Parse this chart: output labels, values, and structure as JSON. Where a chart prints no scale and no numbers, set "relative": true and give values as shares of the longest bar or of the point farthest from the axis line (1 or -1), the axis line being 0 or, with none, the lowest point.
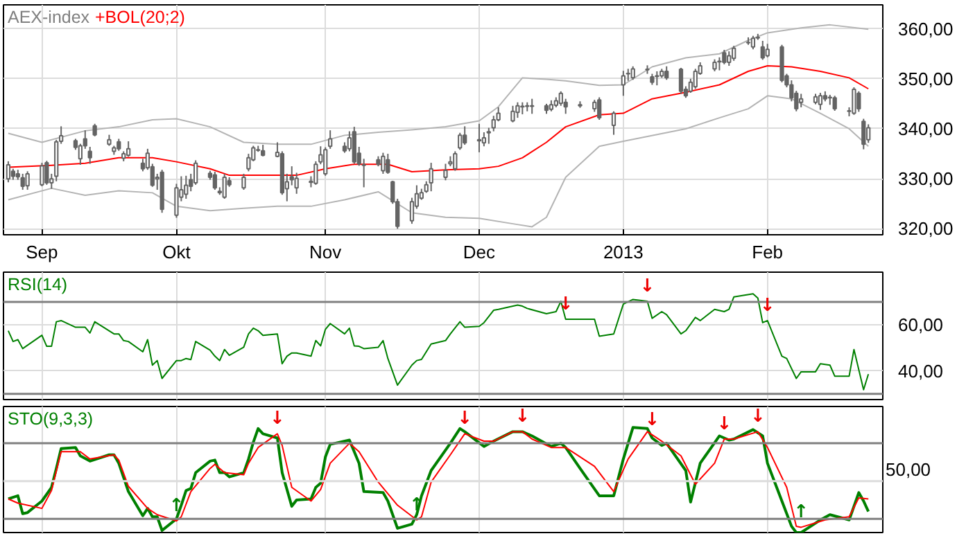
{
  "chart_data": [
    {
      "type": "candlestick",
      "title": "AEX-index",
      "grid": true,
      "xlim": [
        "2012-08-26",
        "2013-02-25"
      ],
      "xticks": [
        {
          "value": "2012-09-03",
          "label": "Sep"
        },
        {
          "value": "2012-10-01",
          "label": "Okt"
        },
        {
          "value": "2012-11-01",
          "label": "Nov"
        },
        {
          "value": "2012-12-03",
          "label": "Dec"
        },
        {
          "value": "2013-01-02",
          "label": "2013"
        },
        {
          "value": "2013-02-01",
          "label": "Feb"
        }
      ],
      "ylim": [
        318.8,
        364.8
      ],
      "yticks": [
        {
          "value": 320,
          "label": "320,00"
        },
        {
          "value": 330,
          "label": "330,00"
        },
        {
          "value": 340,
          "label": "340,00"
        },
        {
          "value": 350,
          "label": "350,00"
        },
        {
          "value": 360,
          "label": "360,00"
        }
      ],
      "x": [
        "2012-08-27",
        "2012-08-28",
        "2012-08-29",
        "2012-08-30",
        "2012-08-31",
        "2012-09-03",
        "2012-09-04",
        "2012-09-05",
        "2012-09-06",
        "2012-09-07",
        "2012-09-10",
        "2012-09-11",
        "2012-09-12",
        "2012-09-13",
        "2012-09-14",
        "2012-09-17",
        "2012-09-18",
        "2012-09-19",
        "2012-09-20",
        "2012-09-21",
        "2012-09-24",
        "2012-09-25",
        "2012-09-26",
        "2012-09-27",
        "2012-09-28",
        "2012-10-01",
        "2012-10-02",
        "2012-10-03",
        "2012-10-04",
        "2012-10-05",
        "2012-10-08",
        "2012-10-09",
        "2012-10-10",
        "2012-10-11",
        "2012-10-12",
        "2012-10-15",
        "2012-10-16",
        "2012-10-17",
        "2012-10-18",
        "2012-10-19",
        "2012-10-22",
        "2012-10-23",
        "2012-10-24",
        "2012-10-25",
        "2012-10-26",
        "2012-10-29",
        "2012-10-30",
        "2012-10-31",
        "2012-11-01",
        "2012-11-02",
        "2012-11-05",
        "2012-11-06",
        "2012-11-07",
        "2012-11-08",
        "2012-11-09",
        "2012-11-12",
        "2012-11-13",
        "2012-11-14",
        "2012-11-15",
        "2012-11-16",
        "2012-11-19",
        "2012-11-20",
        "2012-11-21",
        "2012-11-22",
        "2012-11-23",
        "2012-11-26",
        "2012-11-27",
        "2012-11-28",
        "2012-11-29",
        "2012-11-30",
        "2012-12-03",
        "2012-12-04",
        "2012-12-05",
        "2012-12-06",
        "2012-12-07",
        "2012-12-10",
        "2012-12-11",
        "2012-12-12",
        "2012-12-13",
        "2012-12-14",
        "2012-12-17",
        "2012-12-18",
        "2012-12-19",
        "2012-12-20",
        "2012-12-21",
        "2012-12-24",
        "2012-12-27",
        "2012-12-28",
        "2012-12-31",
        "2013-01-02",
        "2013-01-03",
        "2013-01-04",
        "2013-01-07",
        "2013-01-08",
        "2013-01-09",
        "2013-01-10",
        "2013-01-11",
        "2013-01-14",
        "2013-01-15",
        "2013-01-16",
        "2013-01-17",
        "2013-01-18",
        "2013-01-21",
        "2013-01-22",
        "2013-01-23",
        "2013-01-24",
        "2013-01-25",
        "2013-01-28",
        "2013-01-29",
        "2013-01-30",
        "2013-01-31",
        "2013-02-01",
        "2013-02-04",
        "2013-02-05",
        "2013-02-06",
        "2013-02-07",
        "2013-02-08",
        "2013-02-11",
        "2013-02-12",
        "2013-02-13",
        "2013-02-14",
        "2013-02-15",
        "2013-02-18",
        "2013-02-19",
        "2013-02-20",
        "2013-02-21",
        "2013-02-22"
      ],
      "ohlc": [
        [
          330.0,
          333.5,
          329.3,
          332.8
        ],
        [
          331.5,
          332,
          329.8,
          330.5
        ],
        [
          331,
          331.8,
          329.8,
          330.4
        ],
        [
          330.2,
          331,
          327.8,
          328.5
        ],
        [
          328.6,
          331.5,
          327.8,
          331.0
        ],
        [
          328.8,
          333.2,
          328.5,
          332.6
        ],
        [
          333.2,
          333.6,
          328.8,
          329.2
        ],
        [
          329.2,
          331,
          328,
          330
        ],
        [
          330.5,
          337.8,
          329.5,
          337.4
        ],
        [
          337.5,
          340.5,
          337,
          338.6
        ],
        [
          337.6,
          338,
          335.8,
          336.3
        ],
        [
          334,
          337,
          332.8,
          336.6
        ],
        [
          338,
          339.7,
          336,
          336.6
        ],
        [
          335.5,
          336.4,
          333,
          334.2
        ],
        [
          340.6,
          341,
          338.5,
          338.8
        ],
        [
          336.9,
          338.8,
          336.6,
          337.8
        ],
        [
          335.5,
          336.6,
          334.8,
          336.2
        ],
        [
          337.4,
          338,
          335.6,
          336
        ],
        [
          334.1,
          335.5,
          333.5,
          335
        ],
        [
          334.7,
          337.5,
          334.4,
          336
        ],
        [
          333.1,
          334,
          331.5,
          332
        ],
        [
          332.2,
          336,
          331.8,
          335.1
        ],
        [
          332.4,
          333,
          328.4,
          328.7
        ],
        [
          330,
          331,
          327.8,
          330.3
        ],
        [
          331.3,
          331.8,
          323.2,
          323.9
        ],
        [
          322.7,
          329,
          322.2,
          328.2
        ],
        [
          326.3,
          330.5,
          325.5,
          327.8
        ],
        [
          326.9,
          330.6,
          326,
          328.7
        ],
        [
          329.8,
          331,
          327.5,
          328.5
        ],
        [
          329.2,
          333.7,
          328.8,
          333.1
        ],
        [
          331.1,
          331.6,
          329.8,
          330.3
        ],
        [
          330.8,
          331.4,
          327.8,
          328.2
        ],
        [
          327.2,
          328.3,
          326.8,
          327.5
        ],
        [
          326.3,
          331,
          326,
          330.3
        ],
        [
          329.6,
          330.3,
          328.4,
          328.8
        ],
        [
          328.2,
          331,
          327.8,
          330.3
        ],
        [
          332,
          335,
          331.5,
          334.2
        ],
        [
          333.8,
          336.6,
          333.5,
          336.2
        ],
        [
          335.7,
          336.6,
          335.4,
          335.8
        ],
        [
          335.6,
          336.8,
          334.5,
          334.7
        ],
        [
          334.5,
          337.3,
          334.3,
          335.3
        ],
        [
          335,
          335.5,
          326.8,
          327.2
        ],
        [
          328,
          331,
          325.5,
          329.4
        ],
        [
          330.4,
          332.5,
          328.7,
          329.8
        ],
        [
          328.2,
          331.2,
          327,
          330.1
        ],
        [
          329.3,
          330.5,
          328.3,
          329.5
        ],
        [
          329.1,
          333.5,
          328.8,
          332.9
        ],
        [
          333.4,
          336.5,
          332.9,
          334.8
        ],
        [
          331,
          336.3,
          330.6,
          335.8
        ],
        [
          336.5,
          339.7,
          336,
          338
        ],
        [
          336.5,
          337.3,
          335.2,
          335.6
        ],
        [
          336,
          339.5,
          335.5,
          338.2
        ],
        [
          339.4,
          340.4,
          333,
          333.4
        ],
        [
          335.1,
          336.4,
          332.6,
          333
        ],
        [
          332.8,
          334,
          328.3,
          332.7
        ],
        [
          333.8,
          334.5,
          332.5,
          332.9
        ],
        [
          331.6,
          335.2,
          331,
          334.5
        ],
        [
          333.8,
          335,
          331,
          331.3
        ],
        [
          329.4,
          329.6,
          325,
          325.4
        ],
        [
          325.4,
          326,
          320,
          320.5
        ],
        [
          321.6,
          326.2,
          321,
          325.4
        ],
        [
          324.5,
          328.7,
          324,
          327
        ],
        [
          326.1,
          328,
          325.8,
          327.2
        ],
        [
          327.5,
          329.5,
          327.2,
          328.8
        ],
        [
          329.2,
          333.2,
          327.5,
          332
        ],
        [
          330.3,
          333,
          329.7,
          331.7
        ],
        [
          333,
          334.5,
          332.5,
          333.4
        ],
        [
          332,
          335.5,
          331.6,
          335
        ],
        [
          336.2,
          339.2,
          335.8,
          338.7
        ],
        [
          338.7,
          340.5,
          336.8,
          337.2
        ],
        [
          337.8,
          341,
          335.3,
          337.6
        ],
        [
          337.2,
          339.3,
          336.5,
          338.2
        ],
        [
          339.2,
          340.2,
          337,
          339.4
        ],
        [
          340.2,
          342.6,
          339.5,
          341.8
        ],
        [
          341.8,
          344.3,
          341.5,
          343.1
        ],
        [
          341.6,
          344.6,
          341.3,
          343.5
        ],
        [
          343.3,
          345.3,
          342.2,
          344.6
        ],
        [
          344.4,
          345.3,
          342.9,
          344.5
        ],
        [
          344.6,
          345.3,
          343.5,
          344.5
        ],
        [
          344.5,
          346,
          343,
          344.6
        ],
        [
          344.6,
          345,
          343,
          343.7
        ],
        [
          343.9,
          345.7,
          343.5,
          344.8
        ],
        [
          344.7,
          346.3,
          344.3,
          345.6
        ],
        [
          345.1,
          347.5,
          344.6,
          347.1
        ],
        [
          345.3,
          346,
          343,
          344.4
        ],
        [
          344.6,
          345.5,
          344.2,
          344.8
        ],
        [
          344,
          345.8,
          343.4,
          345.3
        ],
        [
          345.8,
          346.3,
          341.8,
          342.2
        ],
        [
          340.7,
          343.5,
          338.8,
          343.1
        ],
        [
          348.8,
          351.6,
          346.6,
          350.6
        ],
        [
          351,
          352,
          349.6,
          351.1
        ],
        [
          350.2,
          352.5,
          349.8,
          352
        ],
        [
          351.9,
          352.7,
          351,
          351.8
        ],
        [
          350.4,
          351,
          348.8,
          349.3
        ],
        [
          350.5,
          351.5,
          348.7,
          350.6
        ],
        [
          350.6,
          352,
          350.2,
          351.5
        ],
        [
          351.5,
          352.5,
          349.8,
          350.2
        ],
        [
          351.9,
          352.2,
          347,
          347.5
        ],
        [
          347.9,
          348.5,
          346.2,
          346.6
        ],
        [
          347.5,
          350,
          347.2,
          349.3
        ],
        [
          348.4,
          352,
          348,
          351.5
        ],
        [
          351.1,
          353.3,
          350.8,
          352.6
        ],
        [
          352,
          353.9,
          351.5,
          353.3
        ],
        [
          353.4,
          354.3,
          351.7,
          353.5
        ],
        [
          355.2,
          355.8,
          352.9,
          353.3
        ],
        [
          353.3,
          355.5,
          352.6,
          354.6
        ],
        [
          354.1,
          356.6,
          353.6,
          356.1
        ],
        [
          357.2,
          358.3,
          356.8,
          357.3
        ],
        [
          356.4,
          358.6,
          355.9,
          358.1
        ],
        [
          358.2,
          359,
          357.8,
          358.3
        ],
        [
          356.4,
          357.6,
          353.8,
          354.2
        ],
        [
          354.6,
          357,
          354.3,
          355.9
        ],
        [
          356.4,
          356.8,
          349.3,
          349.7
        ],
        [
          350.6,
          351,
          348.3,
          348.8
        ],
        [
          348.8,
          349.7,
          345.5,
          346.2
        ],
        [
          347.1,
          347.6,
          343.5,
          344
        ],
        [
          345.3,
          347,
          344.3,
          346
        ],
        [
          345.3,
          347,
          344.9,
          346.4
        ],
        [
          344.9,
          347.2,
          343.8,
          346.6
        ],
        [
          346.6,
          347.5,
          345.5,
          346
        ],
        [
          346.3,
          346.8,
          344.8,
          346.2
        ],
        [
          346.2,
          346.6,
          343.6,
          344
        ],
        [
          343.6,
          344.3,
          342.5,
          343.5
        ],
        [
          343.1,
          348.3,
          342.8,
          347.9
        ],
        [
          347.1,
          347.5,
          343.4,
          344
        ],
        [
          341.5,
          342,
          335.9,
          336.9
        ],
        [
          337.8,
          340.9,
          337.2,
          340.2
        ]
      ],
      "series": [
        {
          "type": "line",
          "color": "#b4b4b4",
          "x": [
            "2012-08-27",
            "2012-09-03",
            "2012-09-12",
            "2012-09-19",
            "2012-09-26",
            "2012-10-01",
            "2012-10-08",
            "2012-10-15",
            "2012-10-22",
            "2012-10-29",
            "2012-11-05",
            "2012-11-12",
            "2012-11-19",
            "2012-11-26",
            "2012-12-03",
            "2012-12-07",
            "2012-12-12",
            "2012-12-17",
            "2012-12-21",
            "2012-12-28",
            "2013-01-02",
            "2013-01-08",
            "2013-01-15",
            "2013-01-22",
            "2013-01-28",
            "2013-02-01",
            "2013-02-08",
            "2013-02-14",
            "2013-02-22"
          ],
          "values": [
            339.1,
            337.3,
            339.6,
            340.4,
            341.8,
            342,
            340.4,
            337.3,
            336.9,
            336.9,
            338.7,
            339.3,
            339.8,
            340.4,
            341.6,
            344.4,
            350.2,
            349.9,
            349.6,
            348.7,
            348.8,
            352.4,
            354.2,
            355,
            357.7,
            359.2,
            360.2,
            360.8,
            359.9
          ]
        },
        {
          "type": "line",
          "name": "+BOL(20;2)",
          "color": "#ff0000",
          "x": [
            "2012-08-27",
            "2012-09-05",
            "2012-09-12",
            "2012-09-19",
            "2012-09-26",
            "2012-10-01",
            "2012-10-08",
            "2012-10-12",
            "2012-10-19",
            "2012-10-26",
            "2012-11-01",
            "2012-11-07",
            "2012-11-14",
            "2012-11-19",
            "2012-11-26",
            "2012-12-03",
            "2012-12-07",
            "2012-12-12",
            "2012-12-17",
            "2012-12-21",
            "2012-12-28",
            "2013-01-02",
            "2013-01-08",
            "2013-01-15",
            "2013-01-22",
            "2013-01-28",
            "2013-02-01",
            "2013-02-06",
            "2013-02-12",
            "2013-02-18",
            "2013-02-22"
          ],
          "values": [
            332.3,
            332.7,
            333.1,
            334.2,
            334.2,
            333.4,
            332,
            330.7,
            330.7,
            330.7,
            332,
            332.9,
            332.9,
            331.4,
            331.8,
            332,
            332.5,
            334.2,
            337.3,
            340.4,
            342.8,
            343.1,
            346,
            347.3,
            348.8,
            351.5,
            352.6,
            352.4,
            351.5,
            350.2,
            348
          ]
        },
        {
          "type": "line",
          "color": "#b4b4b4",
          "x": [
            "2012-08-27",
            "2012-09-05",
            "2012-09-12",
            "2012-09-19",
            "2012-09-26",
            "2012-10-01",
            "2012-10-08",
            "2012-10-15",
            "2012-10-22",
            "2012-10-29",
            "2012-11-05",
            "2012-11-12",
            "2012-11-19",
            "2012-11-26",
            "2012-12-03",
            "2012-12-10",
            "2012-12-14",
            "2012-12-17",
            "2012-12-21",
            "2012-12-28",
            "2013-01-02",
            "2013-01-15",
            "2013-01-22",
            "2013-01-28",
            "2013-02-01",
            "2013-02-06",
            "2013-02-12",
            "2013-02-18",
            "2013-02-22"
          ],
          "values": [
            325.8,
            328.1,
            326.7,
            327.6,
            327.2,
            324.5,
            323.6,
            324.1,
            324.5,
            324.5,
            325.8,
            327.4,
            323.2,
            322.3,
            322.1,
            321,
            320.4,
            322.3,
            330.3,
            336.5,
            337.5,
            340,
            342.2,
            344,
            346.6,
            346,
            343.1,
            340,
            336.5
          ]
        }
      ]
    },
    {
      "type": "line",
      "title": "RSI(14)",
      "grid": true,
      "tick_labels": "y",
      "xlim": [
        "2012-08-26",
        "2013-02-25"
      ],
      "xticks": [
        {
          "value": "2012-09-03",
          "label": null
        },
        {
          "value": "2012-10-01",
          "label": null
        },
        {
          "value": "2012-11-01",
          "label": null
        },
        {
          "value": "2012-12-03",
          "label": null
        },
        {
          "value": "2013-01-02",
          "label": null
        },
        {
          "value": "2013-02-01",
          "label": null
        }
      ],
      "ylim": [
        27.5,
        83
      ],
      "yticks": [
        {
          "value": 40,
          "label": "40,00"
        },
        {
          "value": 60,
          "label": "60,00"
        }
      ],
      "ref_lines": [
        {
          "axis": "y",
          "value": 30,
          "color": "#808080"
        },
        {
          "axis": "y",
          "value": 70,
          "color": "#808080"
        }
      ],
      "annotations": [
        {
          "text": "↓",
          "x": "2012-12-21",
          "y": 62.5
        },
        {
          "text": "↓",
          "x": "2013-01-07",
          "y": 70.3
        },
        {
          "text": "↓",
          "x": "2013-02-01",
          "y": 61.9
        }
      ],
      "series": [
        {
          "color": "#008000",
          "x": [
            "2012-08-27",
            "2012-08-28",
            "2012-08-29",
            "2012-08-30",
            "2012-09-03",
            "2012-09-04",
            "2012-09-05",
            "2012-09-06",
            "2012-09-07",
            "2012-09-10",
            "2012-09-12",
            "2012-09-13",
            "2012-09-14",
            "2012-09-18",
            "2012-09-19",
            "2012-09-20",
            "2012-09-21",
            "2012-09-24",
            "2012-09-25",
            "2012-09-26",
            "2012-09-27",
            "2012-09-28",
            "2012-10-01",
            "2012-10-02",
            "2012-10-03",
            "2012-10-04",
            "2012-10-05",
            "2012-10-08",
            "2012-10-09",
            "2012-10-10",
            "2012-10-11",
            "2012-10-12",
            "2012-10-15",
            "2012-10-16",
            "2012-10-17",
            "2012-10-18",
            "2012-10-19",
            "2012-10-22",
            "2012-10-23",
            "2012-10-24",
            "2012-10-25",
            "2012-10-26",
            "2012-10-29",
            "2012-10-30",
            "2012-10-31",
            "2012-11-01",
            "2012-11-02",
            "2012-11-05",
            "2012-11-06",
            "2012-11-07",
            "2012-11-08",
            "2012-11-09",
            "2012-11-12",
            "2012-11-13",
            "2012-11-14",
            "2012-11-16",
            "2012-11-19",
            "2012-11-20",
            "2012-11-21",
            "2012-11-23",
            "2012-11-26",
            "2012-11-27",
            "2012-11-29",
            "2012-11-30",
            "2012-12-03",
            "2012-12-04",
            "2012-12-06",
            "2012-12-07",
            "2012-12-11",
            "2012-12-12",
            "2012-12-13",
            "2012-12-17",
            "2012-12-19",
            "2012-12-20",
            "2012-12-21",
            "2012-12-27",
            "2012-12-28",
            "2012-12-31",
            "2013-01-02",
            "2013-01-04",
            "2013-01-07",
            "2013-01-08",
            "2013-01-10",
            "2013-01-11",
            "2013-01-14",
            "2013-01-15",
            "2013-01-17",
            "2013-01-18",
            "2013-01-21",
            "2013-01-23",
            "2013-01-24",
            "2013-01-25",
            "2013-01-29",
            "2013-01-30",
            "2013-01-31",
            "2013-02-01",
            "2013-02-04",
            "2013-02-05",
            "2013-02-07",
            "2013-02-08",
            "2013-02-11",
            "2013-02-12",
            "2013-02-14",
            "2013-02-15",
            "2013-02-18",
            "2013-02-19",
            "2013-02-21",
            "2013-02-22"
          ],
          "values": [
            57.5,
            52.8,
            53.6,
            49.7,
            55.5,
            50.7,
            50.7,
            61.4,
            61.9,
            59,
            59,
            56.5,
            61.4,
            56.1,
            56.1,
            53.2,
            52.8,
            48.3,
            53.6,
            42.5,
            44.5,
            36.7,
            44.5,
            44.5,
            45.4,
            44.9,
            52.8,
            49,
            46.4,
            44.5,
            49.3,
            46.8,
            50.3,
            56.1,
            58.6,
            57.5,
            55.5,
            56.1,
            43.1,
            46.4,
            47.8,
            47.8,
            46.4,
            53.2,
            50.9,
            58.1,
            60.6,
            56.1,
            58.6,
            50.9,
            50.7,
            49.7,
            50.3,
            53.2,
            45.4,
            33.8,
            42.5,
            44.5,
            45,
            51.7,
            53.2,
            56.1,
            61.4,
            59,
            59.4,
            61,
            66.4,
            66.8,
            68.7,
            68.2,
            67.2,
            64.9,
            65.8,
            70.3,
            62.5,
            62.5,
            55.1,
            56.1,
            69.1,
            71.1,
            70.3,
            62.9,
            65.8,
            64.5,
            56.1,
            57.5,
            63.3,
            61.9,
            66.8,
            65.8,
            66.8,
            72.2,
            73.6,
            71.7,
            61,
            61.9,
            46.4,
            45.4,
            36.7,
            39.6,
            39.6,
            43.1,
            42.5,
            37.7,
            37.7,
            49.3,
            31.8,
            38.6
          ]
        }
      ]
    },
    {
      "type": "line",
      "title": "STO(9,3,3)",
      "grid": true,
      "tick_labels": "y",
      "xlim": [
        "2012-08-26",
        "2013-02-25"
      ],
      "xticks": [
        {
          "value": "2012-09-03",
          "label": null
        },
        {
          "value": "2012-10-01",
          "label": null
        },
        {
          "value": "2012-11-01",
          "label": null
        },
        {
          "value": "2012-12-03",
          "label": null
        },
        {
          "value": "2013-01-02",
          "label": null
        },
        {
          "value": "2013-02-01",
          "label": null
        }
      ],
      "relative": true,
      "ref_lines": [
        {
          "axis": "y",
          "value": 0.13,
          "color": "#808080"
        },
        {
          "axis": "y",
          "value": 0.85,
          "color": "#808080"
        },
        {
          "axis": "y",
          "value": 0.49,
          "color": "#dcdcdc"
        }
      ],
      "annotations": [
        "50,00",
        {
          "text": "↑",
          "x": "2012-10-01",
          "y": 0.11
        },
        {
          "text": "↓",
          "x": "2012-10-22",
          "y": 0.94
        },
        {
          "text": "↑",
          "x": "2012-11-20",
          "y": 0.12
        },
        {
          "text": "↓",
          "x": "2012-11-30",
          "y": 0.94
        },
        {
          "text": "↓",
          "x": "2012-12-12",
          "y": 0.96
        },
        {
          "text": "↓",
          "x": "2013-01-08",
          "y": 0.93
        },
        {
          "text": "↓",
          "x": "2013-01-23",
          "y": 0.89
        },
        {
          "text": "↓",
          "x": "2013-01-30",
          "y": 0.96
        },
        {
          "text": "↑",
          "x": "2013-02-08",
          "y": 0.05
        }
      ],
      "series": [
        {
          "color": "#008000",
          "x": [
            "2012-08-27",
            "2012-08-29",
            "2012-08-30",
            "2012-08-31",
            "2012-09-03",
            "2012-09-05",
            "2012-09-06",
            "2012-09-07",
            "2012-09-10",
            "2012-09-11",
            "2012-09-13",
            "2012-09-17",
            "2012-09-18",
            "2012-09-19",
            "2012-09-21",
            "2012-09-24",
            "2012-09-25",
            "2012-09-26",
            "2012-09-27",
            "2012-09-28",
            "2012-10-01",
            "2012-10-02",
            "2012-10-03",
            "2012-10-04",
            "2012-10-05",
            "2012-10-08",
            "2012-10-09",
            "2012-10-10",
            "2012-10-11",
            "2012-10-12",
            "2012-10-15",
            "2012-10-16",
            "2012-10-17",
            "2012-10-18",
            "2012-10-19",
            "2012-10-22",
            "2012-10-23",
            "2012-10-25",
            "2012-10-26",
            "2012-10-29",
            "2012-10-30",
            "2012-10-31",
            "2012-11-01",
            "2012-11-02",
            "2012-11-06",
            "2012-11-07",
            "2012-11-08",
            "2012-11-09",
            "2012-11-13",
            "2012-11-14",
            "2012-11-16",
            "2012-11-19",
            "2012-11-20",
            "2012-11-21",
            "2012-11-23",
            "2012-11-27",
            "2012-11-29",
            "2012-11-30",
            "2012-12-04",
            "2012-12-06",
            "2012-12-10",
            "2012-12-12",
            "2012-12-14",
            "2012-12-18",
            "2012-12-20",
            "2012-12-21",
            "2012-12-24",
            "2012-12-28",
            "2012-12-31",
            "2013-01-02",
            "2013-01-04",
            "2013-01-07",
            "2013-01-08",
            "2013-01-10",
            "2013-01-11",
            "2013-01-15",
            "2013-01-16",
            "2013-01-18",
            "2013-01-22",
            "2013-01-24",
            "2013-01-25",
            "2013-01-29",
            "2013-01-31",
            "2013-02-01",
            "2013-02-04",
            "2013-02-06",
            "2013-02-07",
            "2013-02-08",
            "2013-02-12",
            "2013-02-14",
            "2013-02-18",
            "2013-02-20",
            "2013-02-21",
            "2013-02-22"
          ],
          "values": [
            0.32,
            0.35,
            0.18,
            0.19,
            0.3,
            0.43,
            0.61,
            0.8,
            0.81,
            0.73,
            0.68,
            0.74,
            0.74,
            0.66,
            0.39,
            0.16,
            0.23,
            0.15,
            0.15,
            0.02,
            0.13,
            0.26,
            0.4,
            0.42,
            0.57,
            0.68,
            0.69,
            0.57,
            0.57,
            0.53,
            0.57,
            0.7,
            0.86,
            0.99,
            0.94,
            0.9,
            0.57,
            0.25,
            0.31,
            0.32,
            0.43,
            0.47,
            0.72,
            0.84,
            0.88,
            0.77,
            0.66,
            0.39,
            0.38,
            0.3,
            0.04,
            0.08,
            0.17,
            0.35,
            0.59,
            0.85,
            0.99,
            0.96,
            0.82,
            0.87,
            0.96,
            0.96,
            0.92,
            0.82,
            0.85,
            0.81,
            0.61,
            0.35,
            0.35,
            0.7,
            1.0,
            0.99,
            0.9,
            0.83,
            0.85,
            0.59,
            0.29,
            0.66,
            0.92,
            0.88,
            0.89,
            0.98,
            0.92,
            0.66,
            0.3,
            0.06,
            0,
            0,
            0.12,
            0.17,
            0.12,
            0.38,
            0.3,
            0.2
          ]
        },
        {
          "color": "#ff0000",
          "x": [
            "2012-08-27",
            "2012-08-29",
            "2012-09-03",
            "2012-09-05",
            "2012-09-07",
            "2012-09-11",
            "2012-09-13",
            "2012-09-18",
            "2012-09-19",
            "2012-09-21",
            "2012-09-25",
            "2012-09-27",
            "2012-10-01",
            "2012-10-02",
            "2012-10-04",
            "2012-10-08",
            "2012-10-09",
            "2012-10-11",
            "2012-10-15",
            "2012-10-16",
            "2012-10-18",
            "2012-10-22",
            "2012-10-23",
            "2012-10-25",
            "2012-10-29",
            "2012-10-31",
            "2012-11-02",
            "2012-11-06",
            "2012-11-08",
            "2012-11-12",
            "2012-11-14",
            "2012-11-16",
            "2012-11-20",
            "2012-11-21",
            "2012-11-23",
            "2012-11-27",
            "2012-11-30",
            "2012-12-04",
            "2012-12-06",
            "2012-12-10",
            "2012-12-12",
            "2012-12-14",
            "2012-12-18",
            "2012-12-21",
            "2012-12-27",
            "2012-12-31",
            "2013-01-03",
            "2013-01-07",
            "2013-01-08",
            "2013-01-10",
            "2013-01-14",
            "2013-01-17",
            "2013-01-21",
            "2013-01-23",
            "2013-01-25",
            "2013-01-30",
            "2013-02-01",
            "2013-02-05",
            "2013-02-07",
            "2013-02-08",
            "2013-02-13",
            "2013-02-18",
            "2013-02-20",
            "2013-02-22"
          ],
          "values": [
            0.32,
            0.28,
            0.23,
            0.4,
            0.77,
            0.77,
            0.7,
            0.74,
            0.69,
            0.44,
            0.23,
            0.17,
            0.11,
            0.15,
            0.39,
            0.61,
            0.65,
            0.57,
            0.55,
            0.66,
            0.81,
            0.94,
            0.83,
            0.43,
            0.3,
            0.41,
            0.66,
            0.85,
            0.77,
            0.48,
            0.37,
            0.26,
            0.12,
            0.15,
            0.48,
            0.74,
            0.94,
            0.87,
            0.87,
            0.96,
            0.96,
            0.89,
            0.81,
            0.81,
            0.63,
            0.39,
            0.7,
            0.96,
            0.93,
            0.87,
            0.73,
            0.46,
            0.66,
            0.89,
            0.89,
            0.96,
            0.81,
            0.43,
            0.06,
            0.05,
            0.12,
            0.15,
            0.33,
            0.32
          ]
        }
      ]
    }
  ]
}
